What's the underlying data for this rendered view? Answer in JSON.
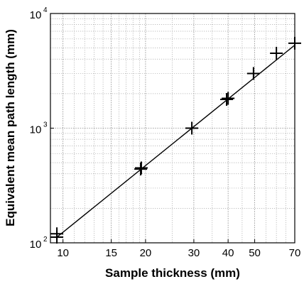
{
  "chart_data": {
    "type": "scatter",
    "xlabel": "Sample thickness (mm)",
    "ylabel": "Equivalent mean path length (mm)",
    "x_scale": "log",
    "y_scale": "log",
    "xlim": [
      9,
      70
    ],
    "ylim": [
      100,
      10000
    ],
    "x_ticks": [
      10,
      15,
      20,
      30,
      40,
      50,
      70
    ],
    "x_tick_labels": [
      "10",
      "15",
      "20",
      "30",
      "40",
      "50",
      "70"
    ],
    "y_ticks": [
      100,
      1000,
      10000
    ],
    "y_tick_labels": [
      {
        "base": "10",
        "exp": "2"
      },
      {
        "base": "10",
        "exp": "3"
      },
      {
        "base": "10",
        "exp": "4"
      }
    ],
    "grid": true,
    "series": [
      {
        "marker": "+",
        "x": [
          9.5,
          9.5,
          19.2,
          19.3,
          29.5,
          39.5,
          40.0,
          49.5,
          60.0,
          70.0
        ],
        "y": [
          112,
          120,
          440,
          450,
          1000,
          1780,
          1820,
          3000,
          4500,
          5500
        ]
      }
    ],
    "fit_line": {
      "x": [
        9.5,
        70
      ],
      "y": [
        112,
        5300
      ]
    }
  }
}
